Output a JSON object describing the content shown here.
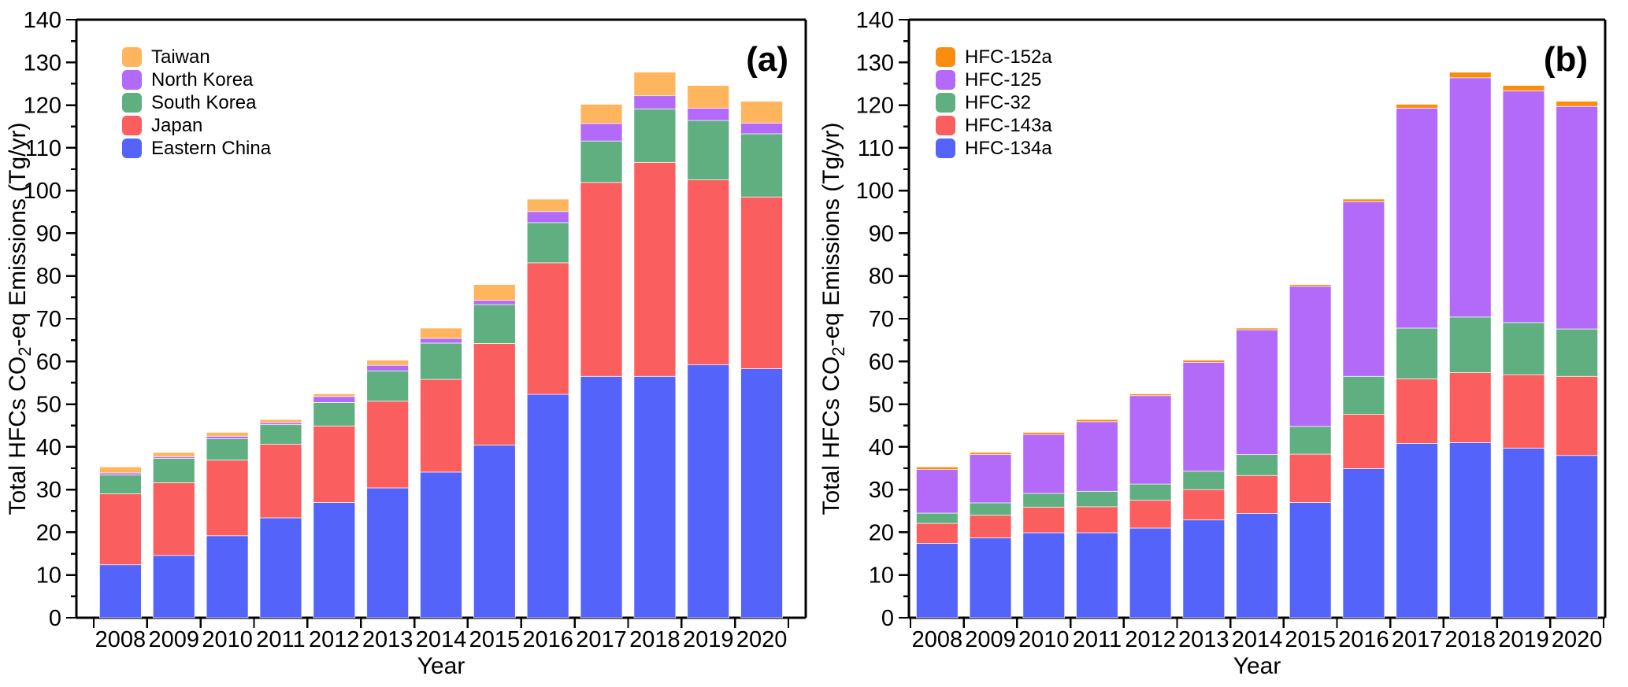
{
  "figure": {
    "background": "#ffffff",
    "xlabel": "Year",
    "ylabel": "Total HFCs CO2-eq Emissions (Tg/yr)",
    "ylabel_parts": {
      "pre": "Total HFCs CO",
      "sub": "2",
      "post": "-eq Emissions (Tg/yr)"
    },
    "axis_color": "#000000"
  },
  "chart_data": [
    {
      "type": "bar",
      "stacked": true,
      "panel_label": "(a)",
      "xlabel": "Year",
      "ylabel": "Total HFCs CO2-eq Emissions (Tg/yr)",
      "ylim": [
        0,
        140
      ],
      "y_major_step": 10,
      "y_minor_step": 5,
      "grid": false,
      "legend_position": "upper-left",
      "categories": [
        "2008",
        "2009",
        "2010",
        "2011",
        "2012",
        "2013",
        "2014",
        "2015",
        "2016",
        "2017",
        "2018",
        "2019",
        "2020"
      ],
      "legend_order_top_to_bottom": [
        "Taiwan",
        "North Korea",
        "South Korea",
        "Japan",
        "Eastern China"
      ],
      "series": [
        {
          "name": "Eastern China",
          "color": "#5464FB",
          "values": [
            12.4,
            14.6,
            19.2,
            23.4,
            27.0,
            30.4,
            34.1,
            40.4,
            52.3,
            56.5,
            56.5,
            59.2,
            58.3
          ]
        },
        {
          "name": "Japan",
          "color": "#FB5E5E",
          "values": [
            16.6,
            17.0,
            17.7,
            17.2,
            17.9,
            20.3,
            21.7,
            23.8,
            30.8,
            45.4,
            50.1,
            43.3,
            40.2
          ]
        },
        {
          "name": "South Korea",
          "color": "#60AF81",
          "values": [
            4.4,
            5.7,
            5.0,
            4.6,
            5.5,
            7.1,
            8.5,
            9.1,
            9.4,
            9.7,
            12.5,
            13.9,
            14.8
          ]
        },
        {
          "name": "North Korea",
          "color": "#B46AF8",
          "values": [
            0.5,
            0.4,
            0.6,
            0.5,
            1.4,
            1.3,
            1.1,
            1.0,
            2.6,
            4.1,
            3.1,
            2.9,
            2.5
          ]
        },
        {
          "name": "Taiwan",
          "color": "#FFB45E",
          "values": [
            1.4,
            1.0,
            0.9,
            0.7,
            0.6,
            1.2,
            2.4,
            3.7,
            2.9,
            4.5,
            5.5,
            5.3,
            5.1
          ]
        }
      ],
      "totals": [
        35.3,
        38.7,
        43.4,
        46.4,
        52.4,
        60.3,
        67.8,
        78.0,
        98.0,
        120.2,
        127.7,
        124.6,
        120.9
      ]
    },
    {
      "type": "bar",
      "stacked": true,
      "panel_label": "(b)",
      "xlabel": "Year",
      "ylabel": "Total HFCs CO2-eq Emissions (Tg/yr)",
      "ylim": [
        0,
        140
      ],
      "y_major_step": 10,
      "y_minor_step": 5,
      "grid": false,
      "legend_position": "upper-left",
      "categories": [
        "2008",
        "2009",
        "2010",
        "2011",
        "2012",
        "2013",
        "2014",
        "2015",
        "2016",
        "2017",
        "2018",
        "2019",
        "2020"
      ],
      "legend_order_top_to_bottom": [
        "HFC-152a",
        "HFC-125",
        "HFC-32",
        "HFC-143a",
        "HFC-134a"
      ],
      "series": [
        {
          "name": "HFC-134a",
          "color": "#5464FB",
          "values": [
            17.4,
            18.7,
            19.9,
            19.9,
            21.0,
            22.9,
            24.4,
            27.0,
            34.9,
            40.8,
            41.0,
            39.7,
            38.0
          ]
        },
        {
          "name": "HFC-143a",
          "color": "#FB5E5E",
          "values": [
            4.7,
            5.3,
            6.0,
            6.1,
            6.5,
            7.1,
            8.9,
            11.3,
            12.7,
            15.1,
            16.4,
            17.2,
            18.5
          ]
        },
        {
          "name": "HFC-32",
          "color": "#60AF81",
          "values": [
            2.4,
            2.9,
            3.2,
            3.6,
            3.8,
            4.3,
            4.9,
            6.5,
            8.9,
            11.9,
            13.0,
            12.2,
            11.1
          ]
        },
        {
          "name": "HFC-125",
          "color": "#B46AF8",
          "values": [
            10.2,
            11.3,
            13.8,
            16.3,
            20.7,
            25.5,
            29.2,
            32.8,
            40.9,
            51.5,
            56.0,
            54.2,
            52.1
          ]
        },
        {
          "name": "HFC-152a",
          "color": "#FB8D0E",
          "values": [
            0.6,
            0.5,
            0.5,
            0.5,
            0.4,
            0.5,
            0.4,
            0.4,
            0.6,
            0.9,
            1.3,
            1.3,
            1.2
          ]
        }
      ],
      "totals": [
        35.3,
        38.7,
        43.4,
        46.4,
        52.4,
        60.3,
        67.8,
        78.0,
        98.0,
        120.2,
        127.7,
        124.6,
        120.9
      ]
    }
  ]
}
